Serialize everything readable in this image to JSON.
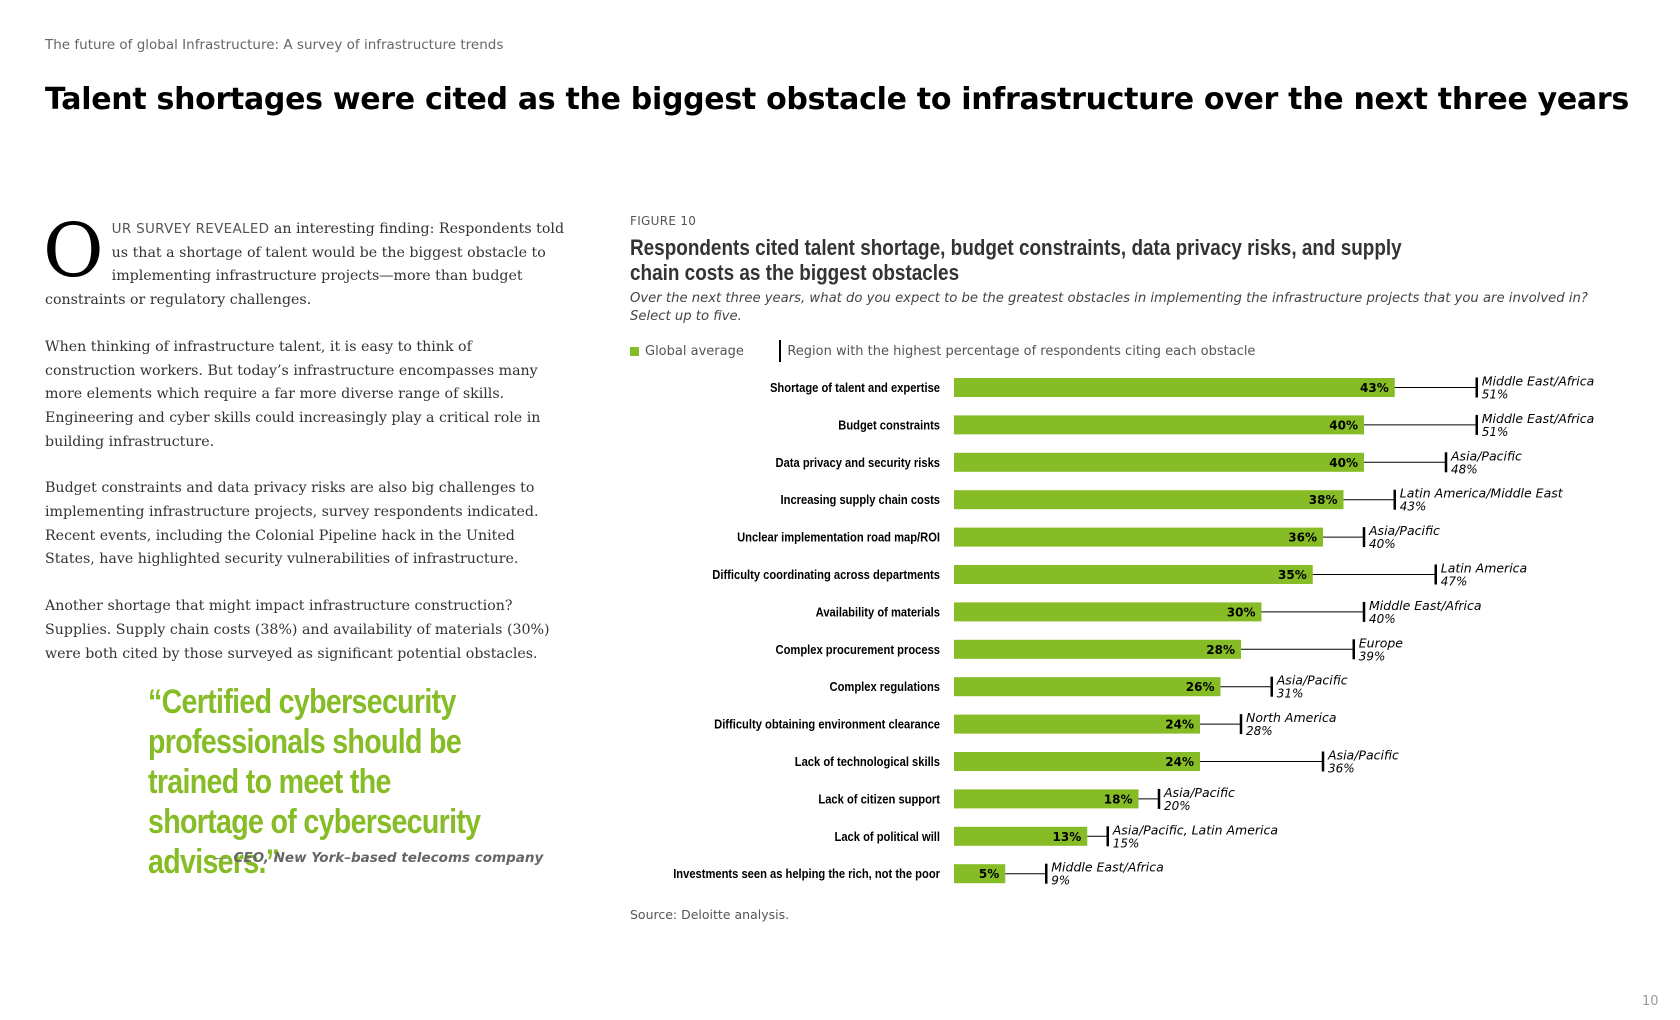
{
  "header": {
    "running_head": "The future of global Infrastructure: A survey of infrastructure trends",
    "title": "Talent shortages were cited as the biggest obstacle to infrastructure over the next three years"
  },
  "body": {
    "dropcap": "O",
    "lead_smallcaps": "UR SURVEY REVEALED",
    "p1_rest": " an interesting finding: Respondents told us that a shortage of talent would be the biggest obstacle to implementing infrastructure projects—more than budget constraints or regulatory challenges.",
    "p2": "When thinking of infrastructure talent, it is easy to think of construction workers. But today’s infrastructure encompasses many more elements which require a far more diverse range of skills. Engineering and cyber skills could increasingly play a critical role in building infrastructure.",
    "p3": "Budget constraints and data privacy risks are also big challenges to implementing infrastructure projects, survey respondents indicated. Recent events, including the Colonial Pipeline hack in the United States, have highlighted security vulnerabilities of infrastructure.",
    "p4": "Another shortage that might impact infrastructure construction? Supplies. Supply chain costs (38%) and availability of materials (30%) were both cited by those surveyed as significant potential obstacles."
  },
  "quote": {
    "text": "“Certified cybersecurity professionals should be trained to meet the shortage of cybersecurity advisers.”",
    "dash": "—",
    "attribution": "CEO, New York–based telecoms company"
  },
  "figure": {
    "label": "FIGURE 10",
    "title": "Respondents cited talent shortage, budget constraints, data privacy risks, and supply chain costs as the biggest obstacles",
    "question": "Over the next three years, what do you expect to be the greatest obstacles in implementing the infrastructure projects that you are involved in? Select up to five.",
    "legend_global": "Global average",
    "legend_region": "Region with the highest percentage of respondents citing each obstacle",
    "source": "Source: Deloitte analysis."
  },
  "chart_data": {
    "type": "bar",
    "orientation": "horizontal",
    "title": "Respondents cited talent shortage, budget constraints, data privacy risks, and supply chain costs as the biggest obstacles",
    "xlim": [
      0,
      60
    ],
    "bar_color": "#86bc25",
    "categories": [
      "Shortage of talent and expertise",
      "Budget constraints",
      "Data privacy and security risks",
      "Increasing supply chain costs",
      "Unclear implementation road map/ROI",
      "Difficulty coordinating across departments",
      "Availability of materials",
      "Complex procurement process",
      "Complex regulations",
      "Difficulty obtaining environment clearance",
      "Lack of technological skills",
      "Lack of citizen support",
      "Lack of political will",
      "Investments seen as helping the rich, not the poor"
    ],
    "series": [
      {
        "name": "Global average",
        "values": [
          43,
          40,
          40,
          38,
          36,
          35,
          30,
          28,
          26,
          24,
          24,
          18,
          13,
          5
        ]
      },
      {
        "name": "Region with the highest percentage of respondents citing each obstacle",
        "values": [
          51,
          51,
          48,
          43,
          40,
          47,
          40,
          39,
          31,
          28,
          36,
          20,
          15,
          9
        ]
      }
    ],
    "regions": [
      "Middle East/Africa",
      "Middle East/Africa",
      "Asia/Pacific",
      "Latin America/Middle East",
      "Asia/Pacific",
      "Latin America",
      "Middle East/Africa",
      "Europe",
      "Asia/Pacific",
      "North America",
      "Asia/Pacific",
      "Asia/Pacific",
      "Asia/Pacific, Latin America",
      "Middle East/Africa"
    ]
  },
  "page_number": "10"
}
